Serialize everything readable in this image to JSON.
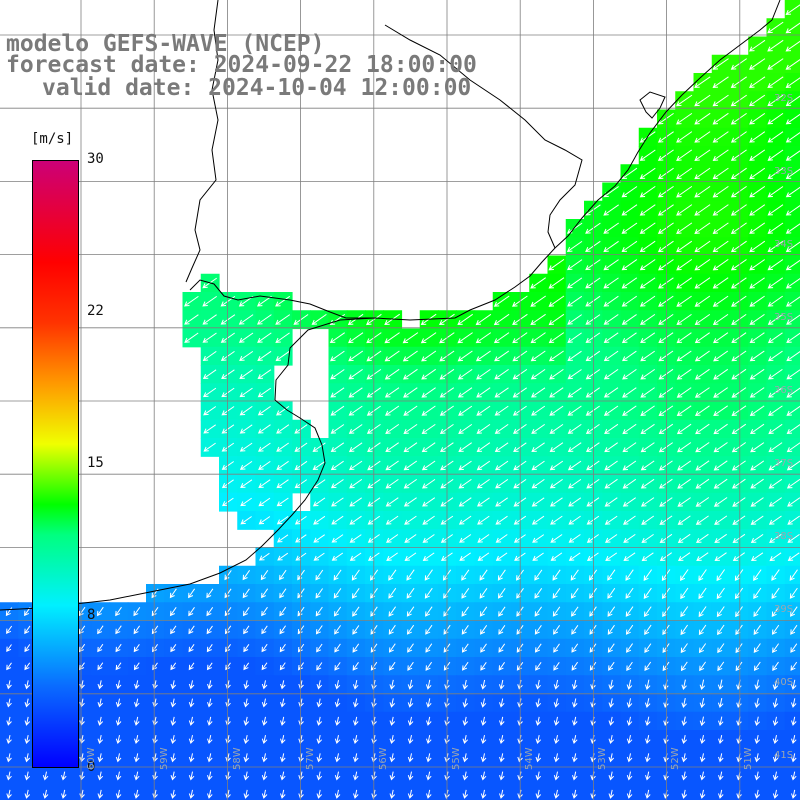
{
  "title": {
    "line1": "modelo GEFS-WAVE (NCEP)",
    "line2": "forecast date: 2024-09-22 18:00:00",
    "line3": "valid date: 2024-10-04 12:00:00"
  },
  "colorbar": {
    "unit": "[m/s]",
    "tick_labels": [
      "30",
      "22",
      "15",
      "8",
      "0"
    ],
    "ticks": [
      30,
      22,
      15,
      8,
      0
    ],
    "range": [
      0,
      30
    ],
    "stops": [
      {
        "v": 0,
        "color": "#0000ff"
      },
      {
        "v": 4,
        "color": "#0a6bff"
      },
      {
        "v": 8,
        "color": "#00f0ff"
      },
      {
        "v": 11.5,
        "color": "#00ff80"
      },
      {
        "v": 13,
        "color": "#00ff00"
      },
      {
        "v": 16,
        "color": "#f0ff00"
      },
      {
        "v": 19,
        "color": "#ff9900"
      },
      {
        "v": 22,
        "color": "#ff3300"
      },
      {
        "v": 25,
        "color": "#ff0000"
      },
      {
        "v": 30,
        "color": "#cc0077"
      }
    ]
  },
  "lat_labels": [
    "32S",
    "33S",
    "34S",
    "35S",
    "36S",
    "37S",
    "38S",
    "39S",
    "40S",
    "41S"
  ],
  "lon_labels": [
    "60W",
    "59W",
    "58W",
    "57W",
    "56W",
    "55W",
    "54W",
    "53W",
    "52W",
    "51W"
  ],
  "colors": {
    "land": "#ffffff",
    "grid": "#7f7f7f",
    "coast": "#000000",
    "arrow": "#ffffff",
    "title": "#7a7a7a"
  },
  "chart_data": {
    "type": "heatmap",
    "variable": "wind speed",
    "unit": "m/s",
    "zones": [
      {
        "region": "northeast coastal strip and estuary mouth",
        "speed_ms": 12.5,
        "arrow_direction": "toward southwest"
      },
      {
        "region": "central shelf off coast",
        "speed_ms": 10.5,
        "arrow_direction": "toward southwest"
      },
      {
        "region": "southern offshore band",
        "speed_ms": 6,
        "arrow_direction": "toward south-southwest"
      },
      {
        "region": "far south",
        "speed_ms": 4,
        "arrow_direction": "toward south"
      }
    ]
  }
}
